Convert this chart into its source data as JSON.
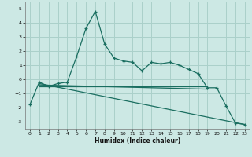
{
  "xlabel": "Humidex (Indice chaleur)",
  "background_color": "#cce8e4",
  "grid_color": "#aad0ca",
  "line_color": "#1a6e60",
  "xlim": [
    -0.5,
    23.5
  ],
  "ylim": [
    -3.5,
    5.5
  ],
  "yticks": [
    -3,
    -2,
    -1,
    0,
    1,
    2,
    3,
    4,
    5
  ],
  "xticks": [
    0,
    1,
    2,
    3,
    4,
    5,
    6,
    7,
    8,
    9,
    10,
    11,
    12,
    13,
    14,
    15,
    16,
    17,
    18,
    19,
    20,
    21,
    22,
    23
  ],
  "curve1_x": [
    0,
    1,
    2,
    3,
    4,
    5,
    6,
    7,
    8,
    9,
    10,
    11,
    12,
    13,
    14,
    15,
    16,
    17,
    18,
    19,
    20,
    21,
    22,
    23
  ],
  "curve1_y": [
    -1.8,
    -0.2,
    -0.5,
    -0.3,
    -0.2,
    1.6,
    3.6,
    4.8,
    2.5,
    1.5,
    1.3,
    1.2,
    0.6,
    1.2,
    1.1,
    1.2,
    1.0,
    0.7,
    0.4,
    -0.6,
    -0.6,
    -1.9,
    -3.1,
    -3.2
  ],
  "curve2_x": [
    1,
    19
  ],
  "curve2_y": [
    -0.5,
    -0.5
  ],
  "curve3_x": [
    1,
    19
  ],
  "curve3_y": [
    -0.4,
    -0.7
  ],
  "curve4_x": [
    1,
    23
  ],
  "curve4_y": [
    -0.3,
    -3.2
  ]
}
